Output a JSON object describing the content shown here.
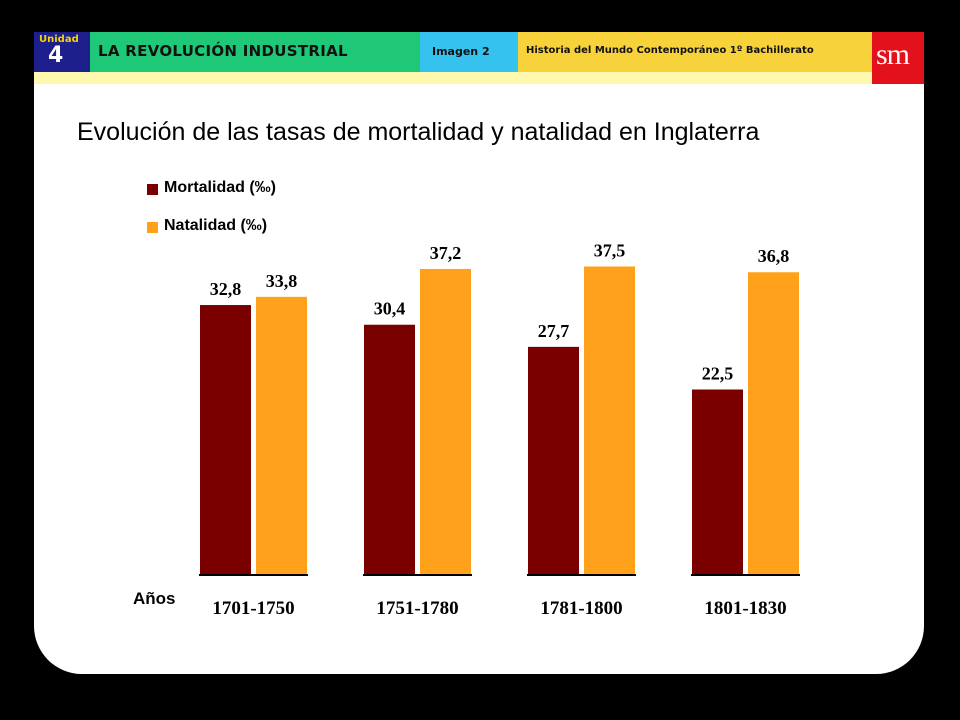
{
  "header": {
    "unit_label": "Unidad",
    "unit_number": "4",
    "title": "LA REVOLUCIÓN INDUSTRIAL",
    "image_label": "Imagen 2",
    "course": "Historia del Mundo Contemporáneo 1º Bachillerato",
    "logo": "sm"
  },
  "colors": {
    "mortalidad": "#7a0000",
    "natalidad": "#ffa11a",
    "unit_bg": "#1c1f8c",
    "title_bg": "#1ec877",
    "image_bg": "#36c2ee",
    "course_bg": "#f7d23a",
    "logo_bg": "#e3111b"
  },
  "chart_data": {
    "type": "bar",
    "title": "Evolución de las tasas de mortalidad y natalidad en Inglaterra",
    "xlabel": "Años",
    "ylabel": "",
    "categories": [
      "1701-1750",
      "1751-1780",
      "1781-1800",
      "1801-1830"
    ],
    "series": [
      {
        "name": "Mortalidad (‰)",
        "values": [
          32.8,
          30.4,
          27.7,
          22.5
        ],
        "labels": [
          "32,8",
          "30,4",
          "27,7",
          "22,5"
        ]
      },
      {
        "name": "Natalidad (‰)",
        "values": [
          33.8,
          37.2,
          37.5,
          36.8
        ],
        "labels": [
          "33,8",
          "37,2",
          "37,5",
          "36,8"
        ]
      }
    ],
    "ylim": [
      0,
      40
    ],
    "grid": false,
    "legend": "top-left"
  }
}
